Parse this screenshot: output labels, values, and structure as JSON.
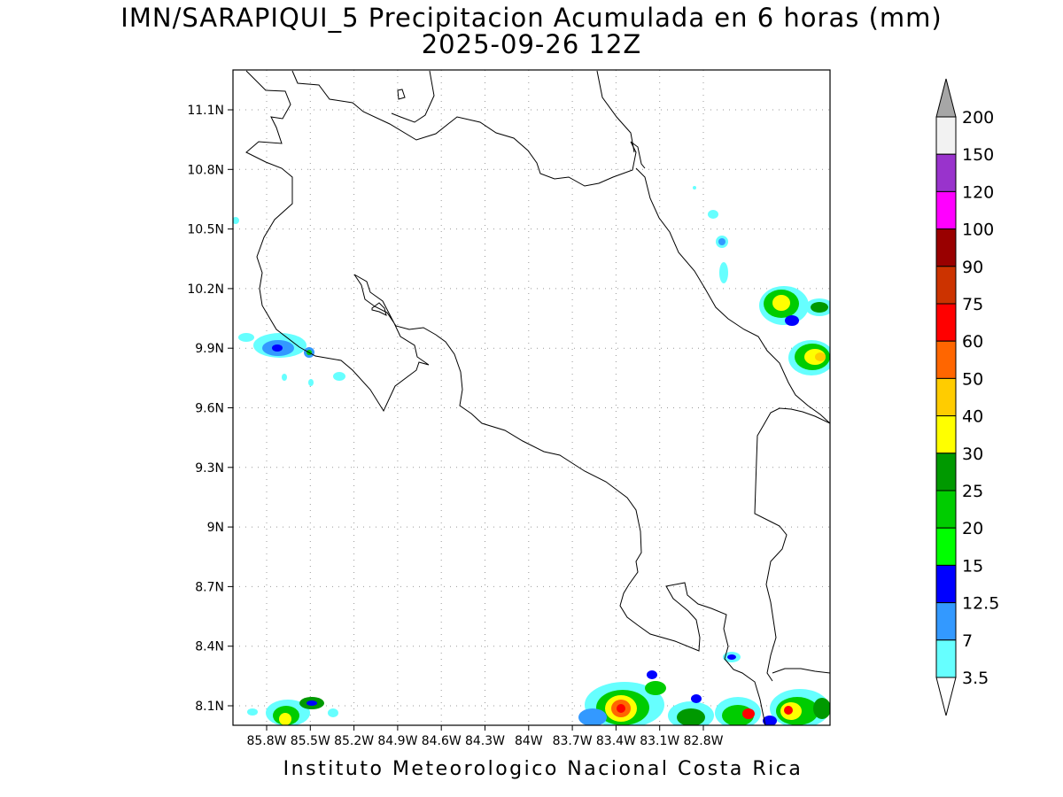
{
  "title_line1": "IMN/SARAPIQUI_5 Precipitacion Acumulada en 6 horas (mm)",
  "title_line2": "2025-09-26 12Z",
  "footer": "Instituto Meteorologico Nacional Costa Rica",
  "map": {
    "lat_labels": [
      "11.1N",
      "10.8N",
      "10.5N",
      "10.2N",
      "9.9N",
      "9.6N",
      "9.3N",
      "9N",
      "8.7N",
      "8.4N",
      "8.1N"
    ],
    "lon_labels": [
      "85.8W",
      "85.5W",
      "85.2W",
      "84.9W",
      "84.6W",
      "84.3W",
      "84W",
      "83.7W",
      "83.4W",
      "83.1W",
      "82.8W"
    ]
  },
  "colorbar": {
    "labels": [
      "3.5",
      "7",
      "12.5",
      "15",
      "20",
      "25",
      "30",
      "40",
      "50",
      "60",
      "75",
      "90",
      "100",
      "120",
      "150",
      "200"
    ],
    "colors": [
      "#66ffff",
      "#3399ff",
      "#0000ff",
      "#00ff00",
      "#00cc00",
      "#009900",
      "#ffff00",
      "#ffcc00",
      "#ff6600",
      "#ff0000",
      "#cc3300",
      "#990000",
      "#ff00ff",
      "#9933cc",
      "#f2f2f2"
    ],
    "over_color": "#a6a6a6",
    "under_color": "#ffffff"
  }
}
